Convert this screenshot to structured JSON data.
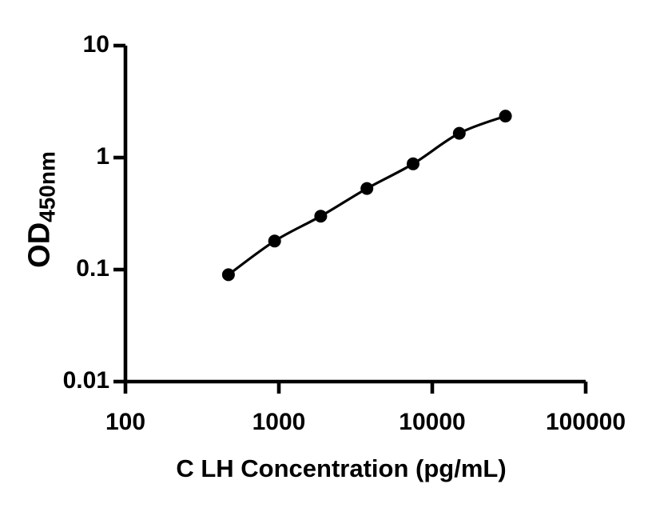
{
  "figure": {
    "background": "#ffffff",
    "ink_color": "#000000"
  },
  "chart_data": {
    "type": "scatter",
    "subtype": "log-log standard curve with fitted smooth line",
    "title": "",
    "xlabel": "C LH Concentration (pg/mL)",
    "ylabel_main": "OD",
    "ylabel_sub": "450nm",
    "x_scale": "log10",
    "y_scale": "log10",
    "xlim": [
      100,
      100000
    ],
    "ylim": [
      0.01,
      10
    ],
    "grid": "off",
    "legend": "none",
    "x_ticks": [
      {
        "label": "100",
        "value": 100
      },
      {
        "label": "1000",
        "value": 1000
      },
      {
        "label": "10000",
        "value": 10000
      },
      {
        "label": "100000",
        "value": 100000
      }
    ],
    "y_ticks": [
      {
        "label": "10",
        "value": 10
      },
      {
        "label": "1",
        "value": 1
      },
      {
        "label": "0.1",
        "value": 0.1
      },
      {
        "label": "0.01",
        "value": 0.01
      }
    ],
    "series": [
      {
        "name": "standard-curve",
        "marker": "circle",
        "marker_color": "#000000",
        "line_color": "#000000",
        "points": [
          {
            "x": 469,
            "y": 0.09
          },
          {
            "x": 938,
            "y": 0.18
          },
          {
            "x": 1875,
            "y": 0.3
          },
          {
            "x": 3750,
            "y": 0.53
          },
          {
            "x": 7500,
            "y": 0.88
          },
          {
            "x": 15000,
            "y": 1.65
          },
          {
            "x": 30000,
            "y": 2.35
          }
        ]
      }
    ]
  }
}
